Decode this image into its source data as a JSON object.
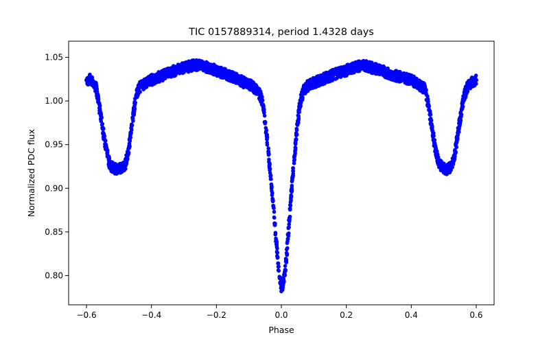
{
  "chart_data": {
    "type": "scatter",
    "title": "TIC 0157889314, period 1.4328 days",
    "xlabel": "Phase",
    "ylabel": "Normalized PDC flux",
    "xlim": [
      -0.655,
      0.655
    ],
    "ylim": [
      0.7665,
      1.0685
    ],
    "xticks": [
      -0.6,
      -0.4,
      -0.2,
      0.0,
      0.2,
      0.4,
      0.6
    ],
    "xtick_labels": [
      "−0.6",
      "−0.4",
      "−0.2",
      "0.0",
      "0.2",
      "0.4",
      "0.6"
    ],
    "yticks": [
      0.8,
      0.85,
      0.9,
      0.95,
      1.0,
      1.05
    ],
    "ytick_labels": [
      "0.80",
      "0.85",
      "0.90",
      "0.95",
      "1.00",
      "1.05"
    ],
    "grid": false,
    "legend": "none",
    "marker_color": "#0000ff",
    "series": [
      {
        "x": [
          -0.6,
          -0.59,
          -0.58,
          -0.575,
          -0.57,
          -0.565,
          -0.56,
          -0.555,
          -0.55,
          -0.545,
          -0.54,
          -0.535,
          -0.53,
          -0.525,
          -0.52,
          -0.515,
          -0.51,
          -0.505,
          -0.5,
          -0.495,
          -0.49,
          -0.485,
          -0.48,
          -0.475,
          -0.47,
          -0.465,
          -0.46,
          -0.455,
          -0.45,
          -0.445,
          -0.44,
          -0.43,
          -0.42,
          -0.4,
          -0.38,
          -0.36,
          -0.34,
          -0.32,
          -0.3,
          -0.28,
          -0.27,
          -0.26,
          -0.24,
          -0.22,
          -0.2,
          -0.18,
          -0.16,
          -0.14,
          -0.12,
          -0.1,
          -0.09,
          -0.08,
          -0.07,
          -0.065,
          -0.06,
          -0.055,
          -0.05,
          -0.045,
          -0.04,
          -0.035,
          -0.03,
          -0.025,
          -0.02,
          -0.015,
          -0.01,
          -0.005,
          0.0,
          0.005,
          0.01,
          0.015,
          0.02,
          0.025,
          0.03,
          0.035,
          0.04,
          0.045,
          0.05,
          0.055,
          0.06,
          0.065,
          0.07,
          0.08,
          0.09,
          0.1,
          0.12,
          0.14,
          0.16,
          0.18,
          0.2,
          0.22,
          0.24,
          0.25,
          0.26,
          0.28,
          0.3,
          0.32,
          0.34,
          0.36,
          0.38,
          0.4,
          0.42,
          0.43,
          0.44,
          0.445,
          0.45,
          0.455,
          0.46,
          0.465,
          0.47,
          0.475,
          0.48,
          0.485,
          0.49,
          0.495,
          0.5,
          0.505,
          0.51,
          0.515,
          0.52,
          0.525,
          0.53,
          0.535,
          0.54,
          0.545,
          0.55,
          0.555,
          0.56,
          0.565,
          0.57,
          0.575,
          0.58,
          0.59,
          0.6
        ],
        "y": [
          1.024,
          1.025,
          1.023,
          1.02,
          1.014,
          1.004,
          0.992,
          0.98,
          0.968,
          0.956,
          0.946,
          0.937,
          0.93,
          0.926,
          0.924,
          0.923,
          0.922,
          0.922,
          0.923,
          0.923,
          0.923,
          0.924,
          0.928,
          0.936,
          0.946,
          0.958,
          0.972,
          0.986,
          0.998,
          1.008,
          1.014,
          1.018,
          1.02,
          1.024,
          1.027,
          1.03,
          1.033,
          1.036,
          1.038,
          1.04,
          1.041,
          1.041,
          1.04,
          1.038,
          1.035,
          1.032,
          1.029,
          1.026,
          1.022,
          1.019,
          1.017,
          1.014,
          1.01,
          1.006,
          1.0,
          0.99,
          0.976,
          0.96,
          0.942,
          0.922,
          0.902,
          0.88,
          0.858,
          0.836,
          0.814,
          0.797,
          0.786,
          0.789,
          0.8,
          0.818,
          0.842,
          0.866,
          0.89,
          0.914,
          0.936,
          0.956,
          0.974,
          0.99,
          1.001,
          1.008,
          1.013,
          1.017,
          1.019,
          1.021,
          1.024,
          1.027,
          1.03,
          1.033,
          1.035,
          1.038,
          1.04,
          1.041,
          1.04,
          1.038,
          1.036,
          1.033,
          1.03,
          1.028,
          1.026,
          1.024,
          1.02,
          1.017,
          1.014,
          1.009,
          1.0,
          0.99,
          0.978,
          0.966,
          0.954,
          0.944,
          0.936,
          0.93,
          0.926,
          0.924,
          0.923,
          0.922,
          0.922,
          0.923,
          0.924,
          0.927,
          0.933,
          0.942,
          0.954,
          0.966,
          0.978,
          0.99,
          1.0,
          1.008,
          1.014,
          1.018,
          1.02,
          1.022,
          1.024
        ]
      }
    ]
  }
}
